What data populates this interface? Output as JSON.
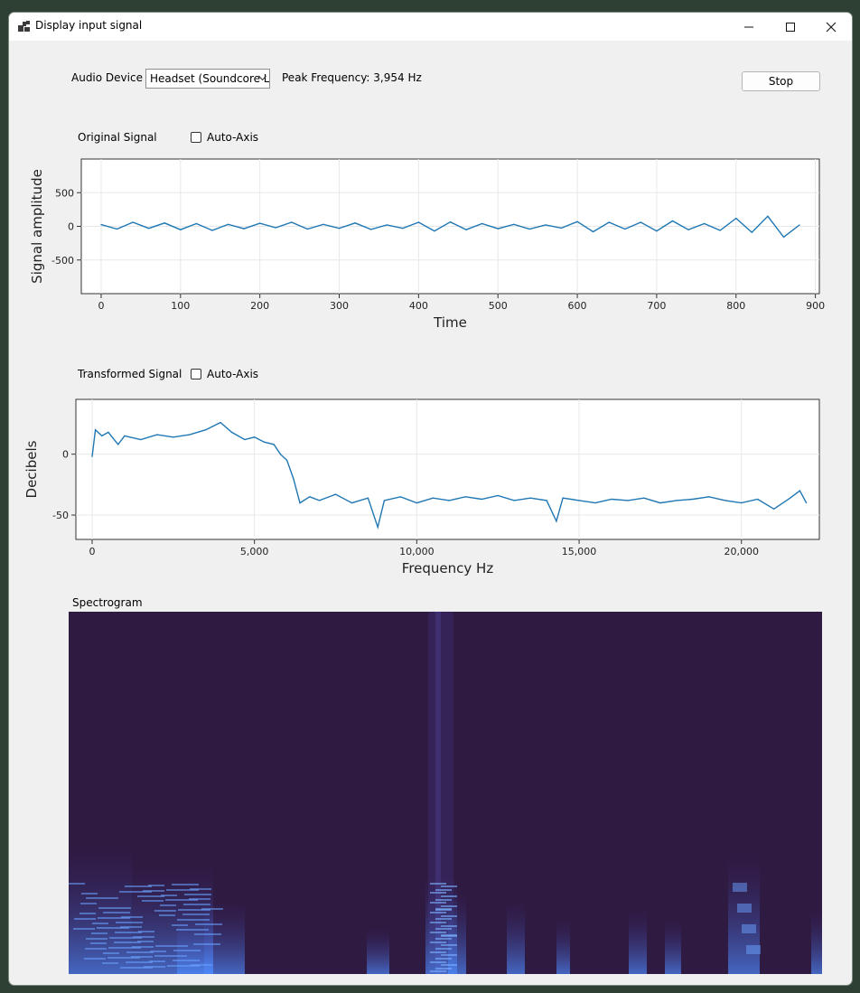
{
  "window": {
    "title": "Display input signal"
  },
  "controls": {
    "audio_device_label": "Audio Device",
    "audio_device_value": "Headset (Soundcore L",
    "peak_frequency": "Peak Frequency: 3,954 Hz",
    "stop_label": "Stop"
  },
  "original": {
    "title": "Original Signal",
    "auto_axis_label": "Auto-Axis",
    "auto_axis_checked": false
  },
  "transformed": {
    "title": "Transformed Signal",
    "auto_axis_label": "Auto-Axis",
    "auto_axis_checked": false
  },
  "spectrogram": {
    "title": "Spectrogram",
    "background": "#2f1a42",
    "accent": "#4f8cff"
  },
  "colors": {
    "line": "#1f77b4",
    "grid": "#e8e8e8"
  },
  "chart_data": [
    {
      "type": "line",
      "xlabel": "Time",
      "ylabel": "Signal amplitude",
      "xlim": [
        -25,
        905
      ],
      "ylim": [
        -1000,
        1000
      ],
      "xticks": [
        0,
        100,
        200,
        300,
        400,
        500,
        600,
        700,
        800,
        900
      ],
      "yticks": [
        500,
        0,
        -500
      ],
      "grid": true,
      "x": [
        0,
        20,
        40,
        60,
        80,
        100,
        120,
        140,
        160,
        180,
        200,
        220,
        240,
        260,
        280,
        300,
        320,
        340,
        360,
        380,
        400,
        420,
        440,
        460,
        480,
        500,
        520,
        540,
        560,
        580,
        600,
        620,
        640,
        660,
        680,
        700,
        720,
        740,
        760,
        780,
        800,
        820,
        840,
        860,
        880
      ],
      "y": [
        25,
        -40,
        60,
        -30,
        50,
        -50,
        40,
        -60,
        30,
        -35,
        45,
        -20,
        60,
        -40,
        30,
        -30,
        50,
        -45,
        20,
        -30,
        60,
        -70,
        65,
        -50,
        40,
        -35,
        30,
        -40,
        20,
        -25,
        70,
        -80,
        60,
        -40,
        60,
        -70,
        80,
        -50,
        40,
        -60,
        120,
        -90,
        150,
        -160,
        20
      ]
    },
    {
      "type": "line",
      "xlabel": "Frequency Hz",
      "ylabel": "Decibels",
      "xlim": [
        -500,
        22400
      ],
      "ylim": [
        -70,
        45
      ],
      "xticks": [
        0,
        5000,
        10000,
        15000,
        20000
      ],
      "xticklabels": [
        "0",
        "5,000",
        "10,000",
        "15,000",
        "20,000"
      ],
      "yticks": [
        0,
        -50
      ],
      "grid": true,
      "x": [
        0,
        100,
        300,
        500,
        800,
        1000,
        1500,
        2000,
        2500,
        3000,
        3500,
        3954,
        4300,
        4700,
        5000,
        5300,
        5600,
        5800,
        6000,
        6200,
        6400,
        6700,
        7000,
        7500,
        8000,
        8500,
        8800,
        9000,
        9500,
        10000,
        10500,
        11000,
        11500,
        12000,
        12500,
        13000,
        13500,
        14000,
        14300,
        14500,
        15000,
        15500,
        16000,
        16500,
        17000,
        17500,
        18000,
        18500,
        19000,
        19500,
        20000,
        20500,
        21000,
        21500,
        21800,
        22000
      ],
      "y": [
        -2,
        20,
        15,
        18,
        8,
        15,
        12,
        16,
        14,
        16,
        20,
        26,
        18,
        12,
        14,
        10,
        8,
        0,
        -5,
        -20,
        -40,
        -35,
        -38,
        -33,
        -40,
        -36,
        -60,
        -38,
        -35,
        -40,
        -36,
        -38,
        -35,
        -37,
        -34,
        -38,
        -36,
        -38,
        -55,
        -36,
        -38,
        -40,
        -37,
        -38,
        -36,
        -40,
        -38,
        -37,
        -35,
        -38,
        -40,
        -37,
        -45,
        -36,
        -30,
        -40
      ]
    }
  ]
}
